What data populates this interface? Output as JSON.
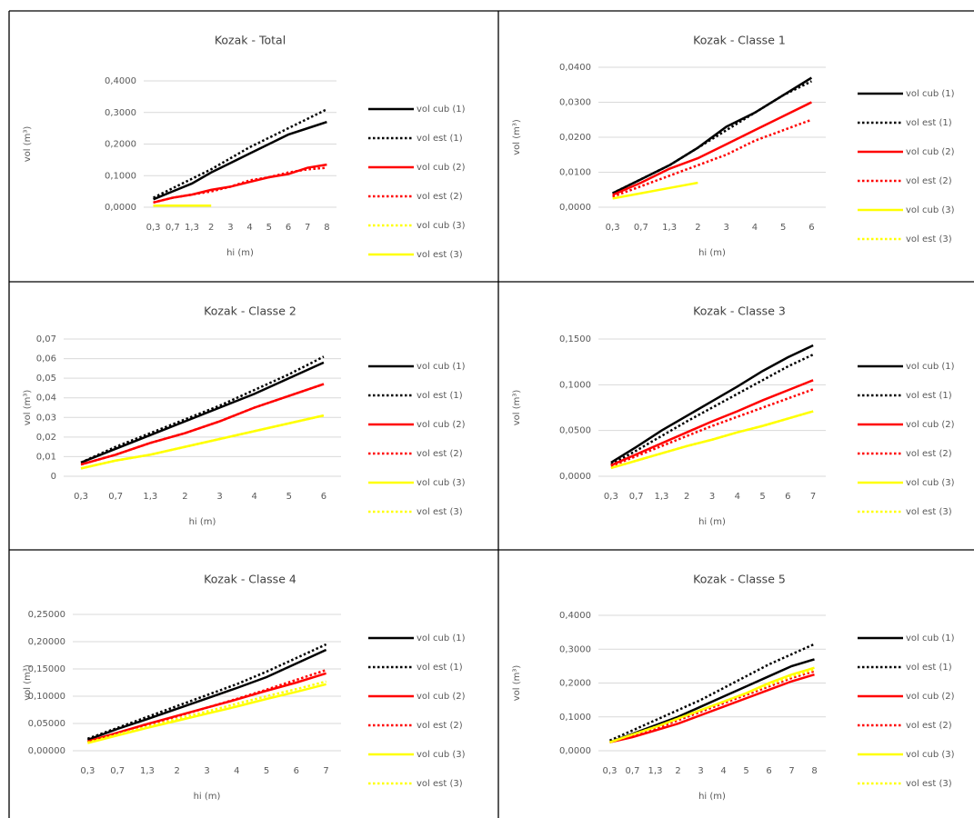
{
  "chart_data": [
    {
      "type": "line",
      "title": "Kozak - Total",
      "x_label": "hi (m)",
      "y_label": "vol (m³)",
      "categories": [
        "0,3",
        "0,7",
        "1,3",
        "2",
        "3",
        "4",
        "5",
        "6",
        "7",
        "8"
      ],
      "ylim": [
        0,
        0.4
      ],
      "yticks": [
        {
          "value": 0,
          "label": "0,0000"
        },
        {
          "value": 0.1,
          "label": "0,1000"
        },
        {
          "value": 0.2,
          "label": "0,2000"
        },
        {
          "value": 0.3,
          "label": "0,3000"
        },
        {
          "value": 0.4,
          "label": "0,4000"
        }
      ],
      "grid": true,
      "series": [
        {
          "name": "vol cub (1)",
          "color": "#000000",
          "dash": false,
          "values": [
            0.025,
            0.05,
            0.075,
            0.11,
            0.14,
            0.17,
            0.2,
            0.23,
            0.25,
            0.27
          ]
        },
        {
          "name": "vol est (1)",
          "color": "#000000",
          "dash": true,
          "values": [
            0.03,
            0.06,
            0.09,
            0.12,
            0.155,
            0.19,
            0.22,
            0.25,
            0.28,
            0.31
          ]
        },
        {
          "name": "vol cub (2)",
          "color": "#ff0000",
          "dash": false,
          "values": [
            0.015,
            0.03,
            0.04,
            0.055,
            0.065,
            0.08,
            0.095,
            0.105,
            0.125,
            0.135
          ]
        },
        {
          "name": "vol est (2)",
          "color": "#ff0000",
          "dash": true,
          "values": [
            0.015,
            0.03,
            0.04,
            0.05,
            0.065,
            0.085,
            0.095,
            0.11,
            0.12,
            0.125
          ]
        },
        {
          "name": "vol cub (3)",
          "color": "#ffff00",
          "dash": true,
          "values": [
            0.005,
            0.005,
            0.005,
            0.005,
            null,
            null,
            null,
            null,
            null,
            null
          ]
        },
        {
          "name": "vol est (3)",
          "color": "#ffff00",
          "dash": false,
          "values": [
            0.005,
            0.005,
            0.005,
            0.005,
            null,
            null,
            null,
            null,
            null,
            null
          ]
        }
      ]
    },
    {
      "type": "line",
      "title": "Kozak - Classe 1",
      "x_label": "hi (m)",
      "y_label": "vol (m³)",
      "categories": [
        "0,3",
        "0,7",
        "1,3",
        "2",
        "3",
        "4",
        "5",
        "6"
      ],
      "ylim": [
        0,
        0.04
      ],
      "yticks": [
        {
          "value": 0,
          "label": "0,0000"
        },
        {
          "value": 0.01,
          "label": "0,0100"
        },
        {
          "value": 0.02,
          "label": "0,0200"
        },
        {
          "value": 0.03,
          "label": "0,0300"
        },
        {
          "value": 0.04,
          "label": "0,0400"
        }
      ],
      "grid": true,
      "series": [
        {
          "name": "vol cub (1)",
          "color": "#000000",
          "dash": false,
          "values": [
            0.004,
            0.008,
            0.012,
            0.017,
            0.023,
            0.027,
            0.032,
            0.037
          ]
        },
        {
          "name": "vol est (1)",
          "color": "#000000",
          "dash": true,
          "values": [
            0.004,
            0.008,
            0.012,
            0.017,
            0.022,
            0.027,
            0.032,
            0.036
          ]
        },
        {
          "name": "vol cub (2)",
          "color": "#ff0000",
          "dash": false,
          "values": [
            0.0035,
            0.007,
            0.011,
            0.014,
            0.018,
            0.022,
            0.026,
            0.03
          ]
        },
        {
          "name": "vol est (2)",
          "color": "#ff0000",
          "dash": true,
          "values": [
            0.003,
            0.006,
            0.009,
            0.012,
            0.015,
            0.019,
            0.022,
            0.025
          ]
        },
        {
          "name": "vol cub (3)",
          "color": "#ffff00",
          "dash": false,
          "values": [
            0.0025,
            0.004,
            0.0055,
            0.007,
            null,
            null,
            null,
            null
          ]
        },
        {
          "name": "vol est (3)",
          "color": "#ffff00",
          "dash": true,
          "values": [
            null,
            null,
            null,
            null,
            null,
            null,
            null,
            null
          ]
        }
      ]
    },
    {
      "type": "line",
      "title": "Kozak - Classe 2",
      "x_label": "hi (m)",
      "y_label": "vol (m³)",
      "categories": [
        "0,3",
        "0,7",
        "1,3",
        "2",
        "3",
        "4",
        "5",
        "6"
      ],
      "ylim": [
        0,
        0.07
      ],
      "yticks": [
        0,
        {
          "value": 0.01,
          "label": "0,01"
        },
        {
          "value": 0.02,
          "label": "0,02"
        },
        {
          "value": 0.03,
          "label": "0,03"
        },
        {
          "value": 0.04,
          "label": "0,04"
        },
        {
          "value": 0.05,
          "label": "0,05"
        },
        {
          "value": 0.06,
          "label": "0,06"
        },
        {
          "value": 0.07,
          "label": "0,07"
        }
      ],
      "grid": true,
      "series": [
        {
          "name": "vol cub (1)",
          "color": "#000000",
          "dash": false,
          "values": [
            0.007,
            0.014,
            0.021,
            0.028,
            0.035,
            0.042,
            0.05,
            0.058
          ]
        },
        {
          "name": "vol est (1)",
          "color": "#000000",
          "dash": true,
          "values": [
            0.007,
            0.015,
            0.022,
            0.029,
            0.036,
            0.044,
            0.052,
            0.061
          ]
        },
        {
          "name": "vol cub (2)",
          "color": "#ff0000",
          "dash": false,
          "values": [
            0.006,
            0.011,
            0.017,
            0.022,
            0.028,
            0.035,
            0.041,
            0.047
          ]
        },
        {
          "name": "vol est (2)",
          "color": "#ff0000",
          "dash": true,
          "values": [
            0.006,
            0.011,
            0.017,
            0.022,
            0.028,
            0.035,
            0.041,
            0.047
          ]
        },
        {
          "name": "vol cub (3)",
          "color": "#ffff00",
          "dash": false,
          "values": [
            0.004,
            0.008,
            0.011,
            0.015,
            0.019,
            0.023,
            0.027,
            0.031
          ]
        },
        {
          "name": "vol est (3)",
          "color": "#ffff00",
          "dash": true,
          "values": [
            0.004,
            0.008,
            0.011,
            0.015,
            0.019,
            0.023,
            0.027,
            0.031
          ]
        }
      ]
    },
    {
      "type": "line",
      "title": "Kozak - Classe 3",
      "x_label": "hi (m)",
      "y_label": "vol (m³)",
      "categories": [
        "0,3",
        "0,7",
        "1,3",
        "2",
        "3",
        "4",
        "5",
        "6",
        "7"
      ],
      "ylim": [
        0,
        0.15
      ],
      "yticks": [
        {
          "value": 0,
          "label": "0,0000"
        },
        {
          "value": 0.05,
          "label": "0,0500"
        },
        {
          "value": 0.1,
          "label": "0,1000"
        },
        {
          "value": 0.15,
          "label": "0,1500"
        }
      ],
      "grid": true,
      "series": [
        {
          "name": "vol cub (1)",
          "color": "#000000",
          "dash": false,
          "values": [
            0.015,
            0.032,
            0.05,
            0.066,
            0.082,
            0.098,
            0.115,
            0.13,
            0.143
          ]
        },
        {
          "name": "vol est (1)",
          "color": "#000000",
          "dash": true,
          "values": [
            0.013,
            0.028,
            0.044,
            0.06,
            0.075,
            0.09,
            0.105,
            0.12,
            0.133
          ]
        },
        {
          "name": "vol cub (2)",
          "color": "#ff0000",
          "dash": false,
          "values": [
            0.012,
            0.024,
            0.036,
            0.048,
            0.06,
            0.071,
            0.083,
            0.094,
            0.105
          ]
        },
        {
          "name": "vol est (2)",
          "color": "#ff0000",
          "dash": true,
          "values": [
            0.011,
            0.022,
            0.033,
            0.044,
            0.055,
            0.065,
            0.075,
            0.085,
            0.095
          ]
        },
        {
          "name": "vol cub (3)",
          "color": "#ffff00",
          "dash": false,
          "values": [
            0.009,
            0.017,
            0.025,
            0.033,
            0.04,
            0.048,
            0.055,
            0.063,
            0.071
          ]
        },
        {
          "name": "vol est (3)",
          "color": "#ffff00",
          "dash": true,
          "values": [
            0.009,
            0.017,
            0.025,
            0.033,
            0.04,
            0.048,
            0.055,
            0.063,
            0.071
          ]
        }
      ]
    },
    {
      "type": "line",
      "title": "Kozak - Classe 4",
      "x_label": "hi (m)",
      "y_label": "vol (m³)",
      "categories": [
        "0,3",
        "0,7",
        "1,3",
        "2",
        "3",
        "4",
        "5",
        "6",
        "7"
      ],
      "ylim": [
        0,
        0.25
      ],
      "yticks": [
        {
          "value": 0,
          "label": "0,00000"
        },
        {
          "value": 0.05,
          "label": "0,05000"
        },
        {
          "value": 0.1,
          "label": "0,10000"
        },
        {
          "value": 0.15,
          "label": "0,15000"
        },
        {
          "value": 0.2,
          "label": "0,20000"
        },
        {
          "value": 0.25,
          "label": "0,25000"
        }
      ],
      "grid": true,
      "series": [
        {
          "name": "vol cub (1)",
          "color": "#000000",
          "dash": false,
          "values": [
            0.02,
            0.04,
            0.058,
            0.077,
            0.096,
            0.115,
            0.135,
            0.16,
            0.185
          ]
        },
        {
          "name": "vol est (1)",
          "color": "#000000",
          "dash": true,
          "values": [
            0.022,
            0.042,
            0.062,
            0.082,
            0.102,
            0.122,
            0.145,
            0.17,
            0.195
          ]
        },
        {
          "name": "vol cub (2)",
          "color": "#ff0000",
          "dash": false,
          "values": [
            0.017,
            0.033,
            0.049,
            0.064,
            0.079,
            0.094,
            0.11,
            0.125,
            0.142
          ]
        },
        {
          "name": "vol est (2)",
          "color": "#ff0000",
          "dash": true,
          "values": [
            0.016,
            0.032,
            0.048,
            0.063,
            0.079,
            0.095,
            0.112,
            0.13,
            0.148
          ]
        },
        {
          "name": "vol cub (3)",
          "color": "#ffff00",
          "dash": false,
          "values": [
            0.014,
            0.028,
            0.042,
            0.055,
            0.068,
            0.081,
            0.095,
            0.108,
            0.122
          ]
        },
        {
          "name": "vol est (3)",
          "color": "#ffff00",
          "dash": true,
          "values": [
            0.015,
            0.03,
            0.044,
            0.058,
            0.072,
            0.086,
            0.1,
            0.113,
            0.127
          ]
        }
      ]
    },
    {
      "type": "line",
      "title": "Kozak - Classe 5",
      "x_label": "hi (m)",
      "y_label": "vol (m³)",
      "categories": [
        "0,3",
        "0,7",
        "1,3",
        "2",
        "3",
        "4",
        "5",
        "6",
        "7",
        "8"
      ],
      "ylim": [
        0,
        0.4
      ],
      "yticks": [
        {
          "value": 0,
          "label": "0,0000"
        },
        {
          "value": 0.1,
          "label": "0,1000"
        },
        {
          "value": 0.2,
          "label": "0,2000"
        },
        {
          "value": 0.3,
          "label": "0,3000"
        },
        {
          "value": 0.4,
          "label": "0,4000"
        }
      ],
      "grid": true,
      "series": [
        {
          "name": "vol cub (1)",
          "color": "#000000",
          "dash": false,
          "values": [
            0.025,
            0.05,
            0.075,
            0.1,
            0.13,
            0.16,
            0.19,
            0.22,
            0.25,
            0.27
          ]
        },
        {
          "name": "vol est (1)",
          "color": "#000000",
          "dash": true,
          "values": [
            0.03,
            0.06,
            0.09,
            0.12,
            0.15,
            0.185,
            0.22,
            0.255,
            0.285,
            0.315
          ]
        },
        {
          "name": "vol cub (2)",
          "color": "#ff0000",
          "dash": false,
          "values": [
            0.025,
            0.04,
            0.06,
            0.08,
            0.105,
            0.13,
            0.155,
            0.18,
            0.205,
            0.225
          ]
        },
        {
          "name": "vol est (2)",
          "color": "#ff0000",
          "dash": true,
          "values": [
            0.025,
            0.045,
            0.065,
            0.09,
            0.115,
            0.14,
            0.165,
            0.19,
            0.215,
            0.235
          ]
        },
        {
          "name": "vol cub (3)",
          "color": "#ffff00",
          "dash": false,
          "values": [
            0.025,
            0.048,
            0.07,
            0.095,
            0.12,
            0.145,
            0.17,
            0.2,
            0.225,
            0.245
          ]
        },
        {
          "name": "vol est (3)",
          "color": "#ffff00",
          "dash": true,
          "values": [
            0.025,
            0.048,
            0.07,
            0.095,
            0.12,
            0.145,
            0.17,
            0.195,
            0.22,
            0.24
          ]
        }
      ]
    }
  ]
}
